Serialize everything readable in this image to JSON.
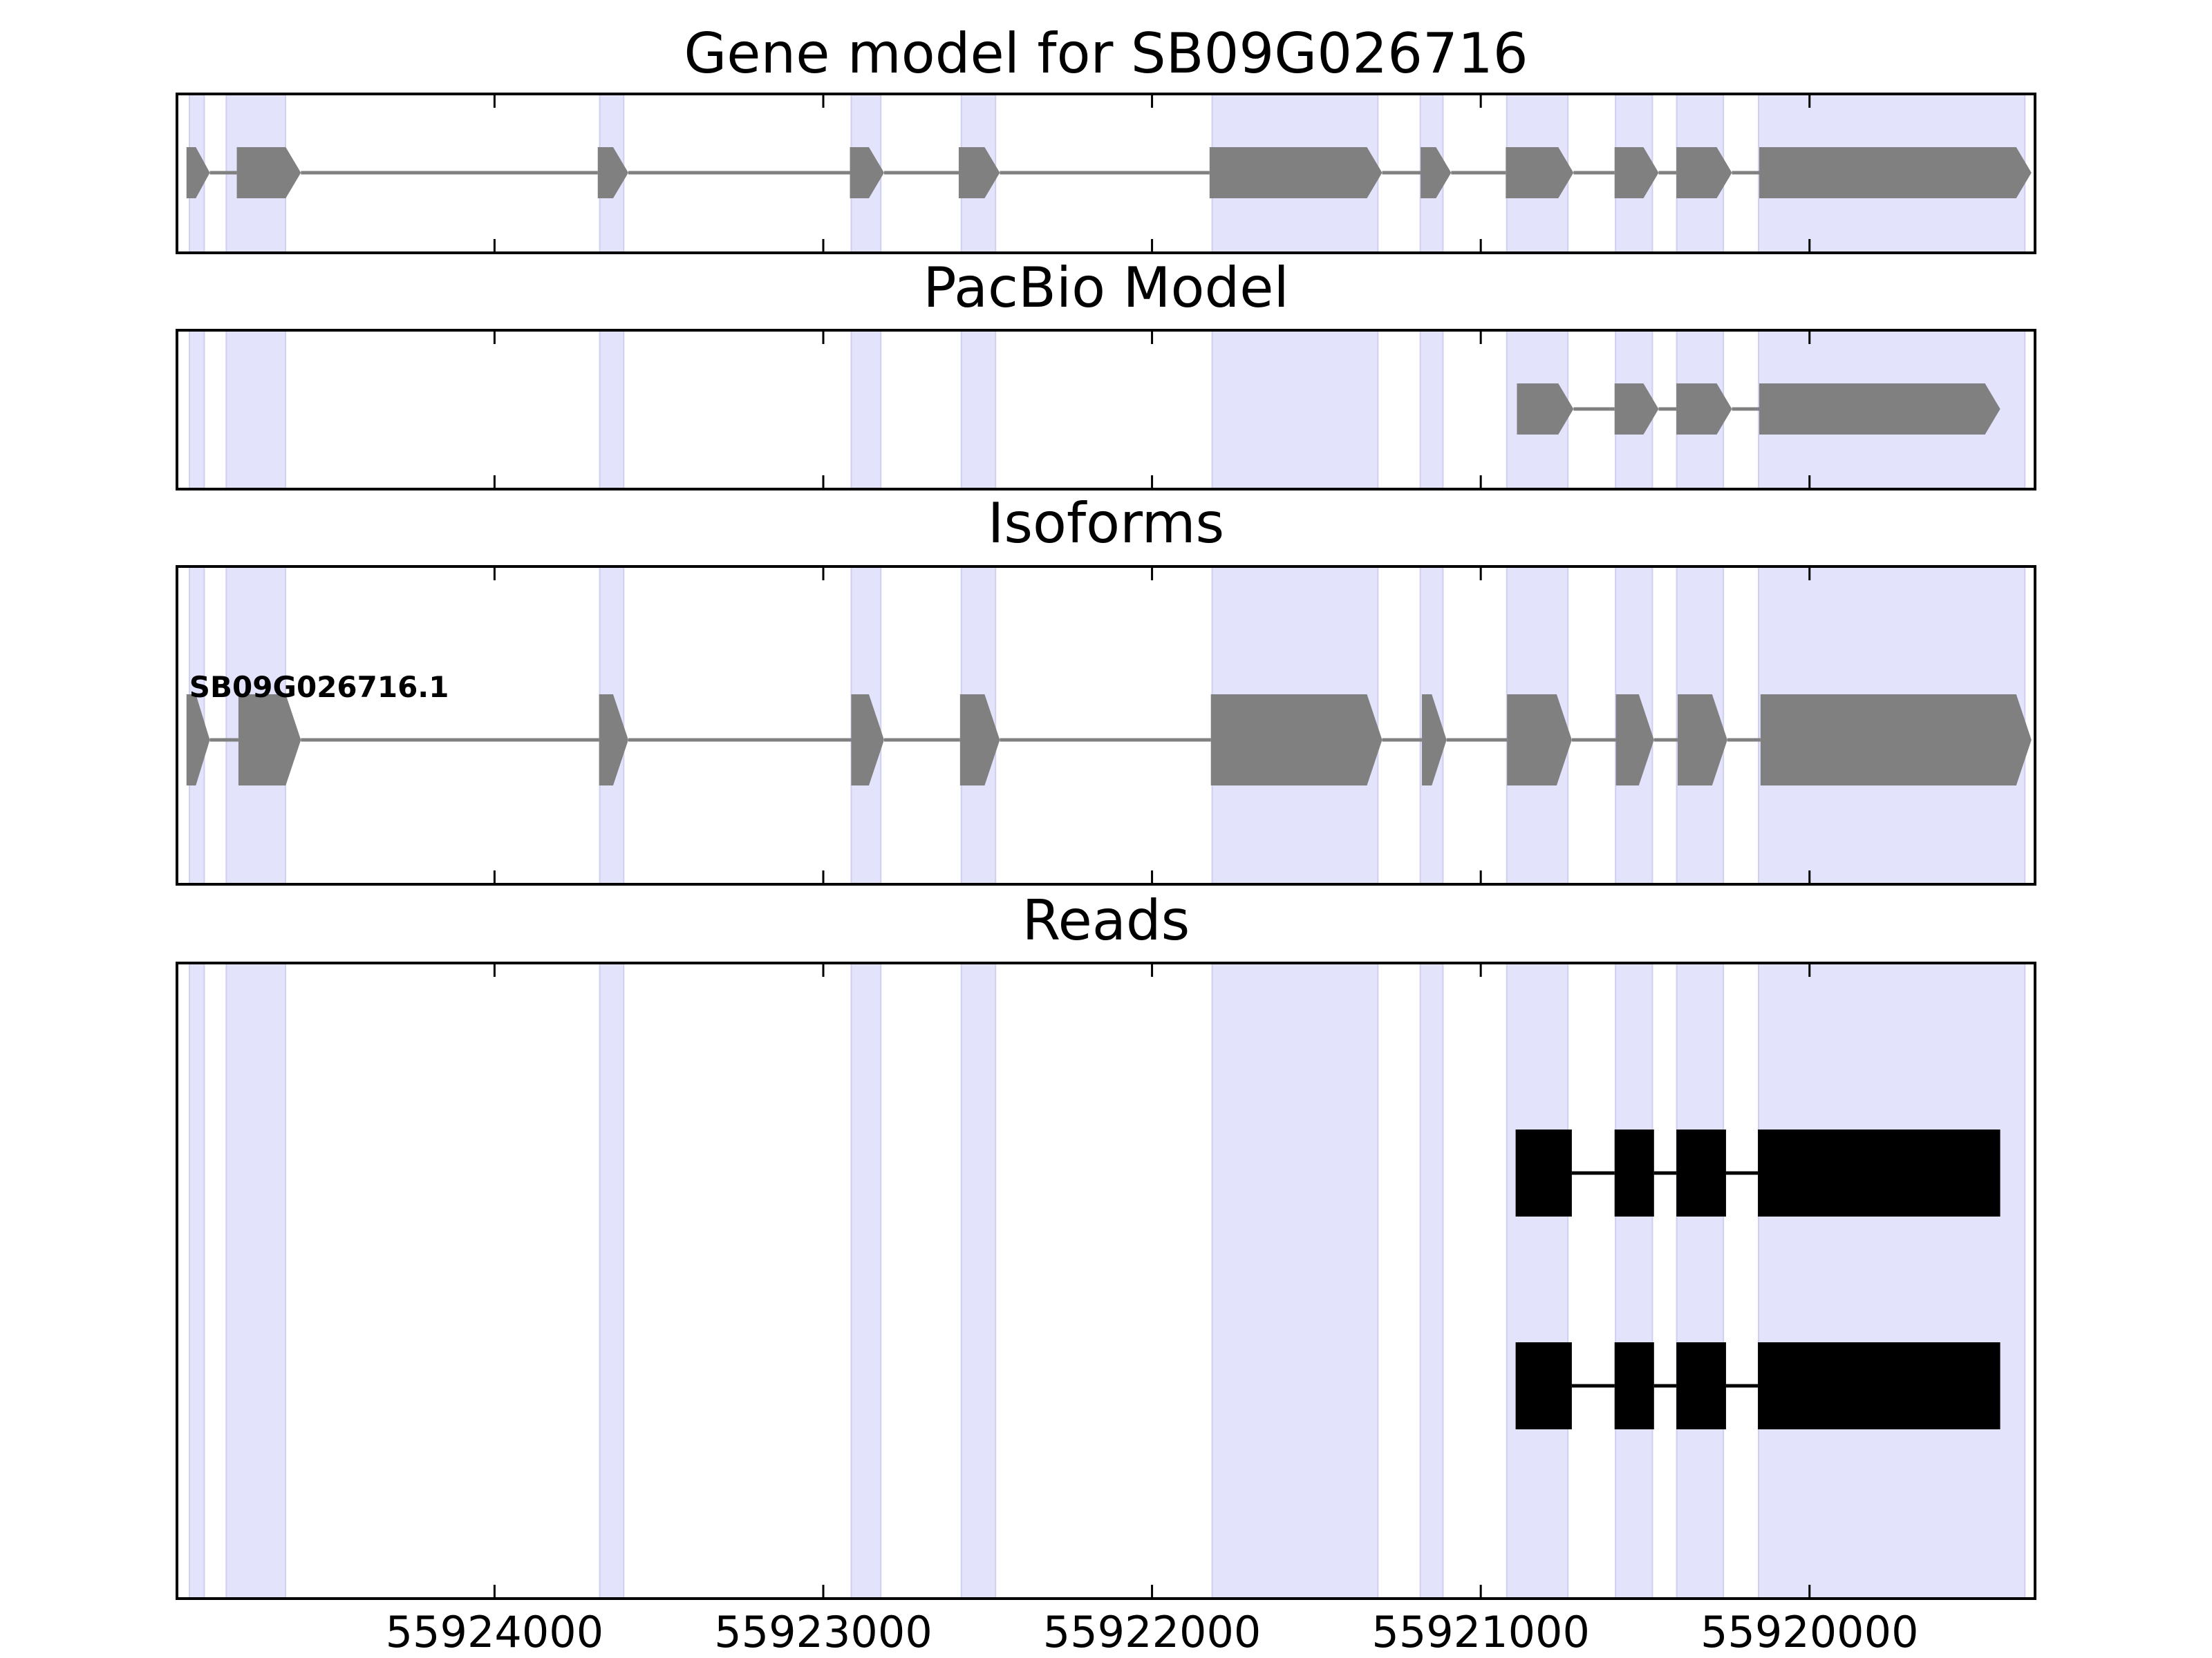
{
  "chart_data": {
    "type": "gene-structure",
    "x_axis": {
      "min": 55924966,
      "max": 55919314,
      "reversed": true,
      "ticks": [
        55924000,
        55923000,
        55922000,
        55921000,
        55920000
      ],
      "tick_labels": [
        "55924000",
        "55923000",
        "55922000",
        "55921000",
        "55920000"
      ]
    },
    "exon_highlights": [
      [
        55924928,
        55924883
      ],
      [
        55924816,
        55924636
      ],
      [
        55923680,
        55923607
      ],
      [
        55922915,
        55922825
      ],
      [
        55922580,
        55922476
      ],
      [
        55921817,
        55921313
      ],
      [
        55921184,
        55921115
      ],
      [
        55920921,
        55920735
      ],
      [
        55920590,
        55920478
      ],
      [
        55920404,
        55920262
      ],
      [
        55920155,
        55919345
      ]
    ],
    "highlight_color": "#e3e3fc",
    "feature_color": "#808080",
    "read_color": "#000000",
    "panels": [
      {
        "id": "gene-model",
        "title": "Gene model for SB09G026716",
        "tracks": [
          {
            "label": "",
            "strand": "-",
            "exons": [
              [
                55924937,
                55924866
              ],
              [
                55924784,
                55924589
              ],
              [
                55923686,
                55923593
              ],
              [
                55922919,
                55922815
              ],
              [
                55922588,
                55922463
              ],
              [
                55921825,
                55921300
              ],
              [
                55921183,
                55921090
              ],
              [
                55920924,
                55920718
              ],
              [
                55920593,
                55920459
              ],
              [
                55920405,
                55920236
              ],
              [
                55920153,
                55919325
              ]
            ]
          }
        ]
      },
      {
        "id": "pacbio-model",
        "title": "PacBio Model",
        "tracks": [
          {
            "label": "",
            "strand": "-",
            "exons": [
              [
                55920890,
                55920718
              ],
              [
                55920593,
                55920459
              ],
              [
                55920405,
                55920236
              ],
              [
                55920153,
                55919420
              ]
            ]
          }
        ]
      },
      {
        "id": "isoforms",
        "title": "Isoforms",
        "tracks": [
          {
            "label": "SB09G026716.1",
            "strand": "-",
            "exons": [
              [
                55924937,
                55924866
              ],
              [
                55924779,
                55924589
              ],
              [
                55923682,
                55923593
              ],
              [
                55922915,
                55922815
              ],
              [
                55922584,
                55922463
              ],
              [
                55921821,
                55921300
              ],
              [
                55921179,
                55921104
              ],
              [
                55920920,
                55920723
              ],
              [
                55920589,
                55920473
              ],
              [
                55920401,
                55920250
              ],
              [
                55920149,
                55919325
              ]
            ]
          }
        ]
      },
      {
        "id": "reads",
        "title": "Reads",
        "tracks": [
          {
            "label": "",
            "exons": [
              [
                55920894,
                55920723
              ],
              [
                55920593,
                55920473
              ],
              [
                55920405,
                55920254
              ],
              [
                55920157,
                55919420
              ]
            ]
          },
          {
            "label": "",
            "exons": [
              [
                55920894,
                55920723
              ],
              [
                55920593,
                55920473
              ],
              [
                55920405,
                55920254
              ],
              [
                55920157,
                55919420
              ]
            ]
          }
        ]
      }
    ]
  }
}
